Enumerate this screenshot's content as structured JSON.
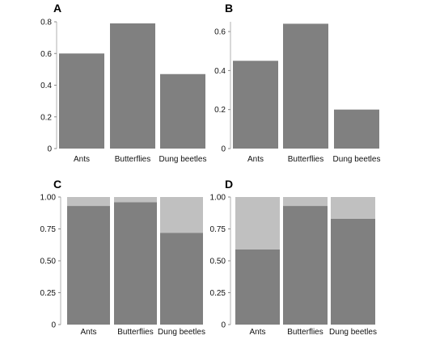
{
  "chart_data": [
    {
      "panel": "A",
      "type": "bar",
      "categories": [
        "Ants",
        "Butterflies",
        "Dung beetles"
      ],
      "values": [
        0.6,
        0.79,
        0.47
      ],
      "ylim": [
        0,
        0.8
      ],
      "yticks": [
        "0",
        "0.2",
        "0.4",
        "0.6",
        "0.8"
      ],
      "bar_color": "#808080"
    },
    {
      "panel": "B",
      "type": "bar",
      "categories": [
        "Ants",
        "Butterflies",
        "Dung beetles"
      ],
      "values": [
        0.45,
        0.64,
        0.2
      ],
      "ylim": [
        0,
        0.65
      ],
      "yticks": [
        "0",
        "0.2",
        "0.4",
        "0.6"
      ],
      "bar_color": "#808080"
    },
    {
      "panel": "C",
      "type": "bar",
      "stacked": true,
      "categories": [
        "Ants",
        "Butterflies",
        "Dung beetles"
      ],
      "series": [
        {
          "values": [
            0.93,
            0.96,
            0.72
          ],
          "color": "#808080"
        },
        {
          "values": [
            0.07,
            0.04,
            0.28
          ],
          "color": "#c0c0c0"
        }
      ],
      "ylim": [
        0,
        1
      ],
      "yticks": [
        "0",
        "0.25",
        "0.50",
        "0.75",
        "1.00"
      ]
    },
    {
      "panel": "D",
      "type": "bar",
      "stacked": true,
      "categories": [
        "Ants",
        "Butterflies",
        "Dung beetles"
      ],
      "series": [
        {
          "values": [
            0.59,
            0.93,
            0.83
          ],
          "color": "#808080"
        },
        {
          "values": [
            0.41,
            0.07,
            0.17
          ],
          "color": "#c0c0c0"
        }
      ],
      "ylim": [
        0,
        1
      ],
      "yticks": [
        "0",
        "0.25",
        "0.50",
        "0.75",
        "1.00"
      ]
    }
  ]
}
